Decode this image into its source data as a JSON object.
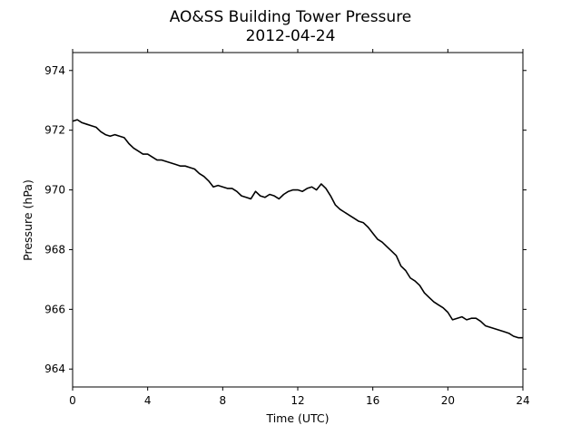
{
  "chart_data": {
    "type": "line",
    "title": "AO&SS Building Tower Pressure",
    "subtitle": "2012-04-24",
    "xlabel": "Time (UTC)",
    "ylabel": "Pressure (hPa)",
    "xlim": [
      0,
      24
    ],
    "ylim": [
      963.4,
      974.6
    ],
    "xticks": [
      0,
      4,
      8,
      12,
      16,
      20,
      24
    ],
    "yticks": [
      964,
      966,
      968,
      970,
      972,
      974
    ],
    "grid": false,
    "line_color": "#000000",
    "series": [
      {
        "x": [
          0.0,
          0.25,
          0.5,
          0.75,
          1.0,
          1.25,
          1.5,
          1.75,
          2.0,
          2.25,
          2.5,
          2.75,
          3.0,
          3.25,
          3.5,
          3.75,
          4.0,
          4.25,
          4.5,
          4.75,
          5.0,
          5.25,
          5.5,
          5.75,
          6.0,
          6.25,
          6.5,
          6.75,
          7.0,
          7.25,
          7.5,
          7.75,
          8.0,
          8.25,
          8.5,
          8.75,
          9.0,
          9.25,
          9.5,
          9.75,
          10.0,
          10.25,
          10.5,
          10.75,
          11.0,
          11.25,
          11.5,
          11.75,
          12.0,
          12.25,
          12.5,
          12.75,
          13.0,
          13.25,
          13.5,
          13.75,
          14.0,
          14.25,
          14.5,
          14.75,
          15.0,
          15.25,
          15.5,
          15.75,
          16.0,
          16.25,
          16.5,
          16.75,
          17.0,
          17.25,
          17.5,
          17.75,
          18.0,
          18.25,
          18.5,
          18.75,
          19.0,
          19.25,
          19.5,
          19.75,
          20.0,
          20.25,
          20.5,
          20.75,
          21.0,
          21.25,
          21.5,
          21.75,
          22.0,
          22.25,
          22.5,
          22.75,
          23.0,
          23.25,
          23.5,
          23.75,
          24.0
        ],
        "y": [
          972.3,
          972.35,
          972.25,
          972.2,
          972.15,
          972.1,
          971.95,
          971.85,
          971.8,
          971.85,
          971.8,
          971.75,
          971.55,
          971.4,
          971.3,
          971.2,
          971.2,
          971.1,
          971.0,
          971.0,
          970.95,
          970.9,
          970.85,
          970.8,
          970.8,
          970.75,
          970.7,
          970.55,
          970.45,
          970.3,
          970.1,
          970.15,
          970.1,
          970.05,
          970.05,
          969.95,
          969.8,
          969.75,
          969.7,
          969.95,
          969.8,
          969.75,
          969.85,
          969.8,
          969.7,
          969.85,
          969.95,
          970.0,
          970.0,
          969.95,
          970.05,
          970.1,
          970.0,
          970.2,
          970.05,
          969.8,
          969.5,
          969.35,
          969.25,
          969.15,
          969.05,
          968.95,
          968.9,
          968.75,
          968.55,
          968.35,
          968.25,
          968.1,
          967.95,
          967.8,
          967.45,
          967.3,
          967.05,
          966.95,
          966.8,
          966.55,
          966.4,
          966.25,
          966.15,
          966.05,
          965.9,
          965.65,
          965.7,
          965.75,
          965.65,
          965.7,
          965.7,
          965.6,
          965.45,
          965.4,
          965.35,
          965.3,
          965.25,
          965.2,
          965.1,
          965.05,
          965.05
        ]
      }
    ]
  }
}
